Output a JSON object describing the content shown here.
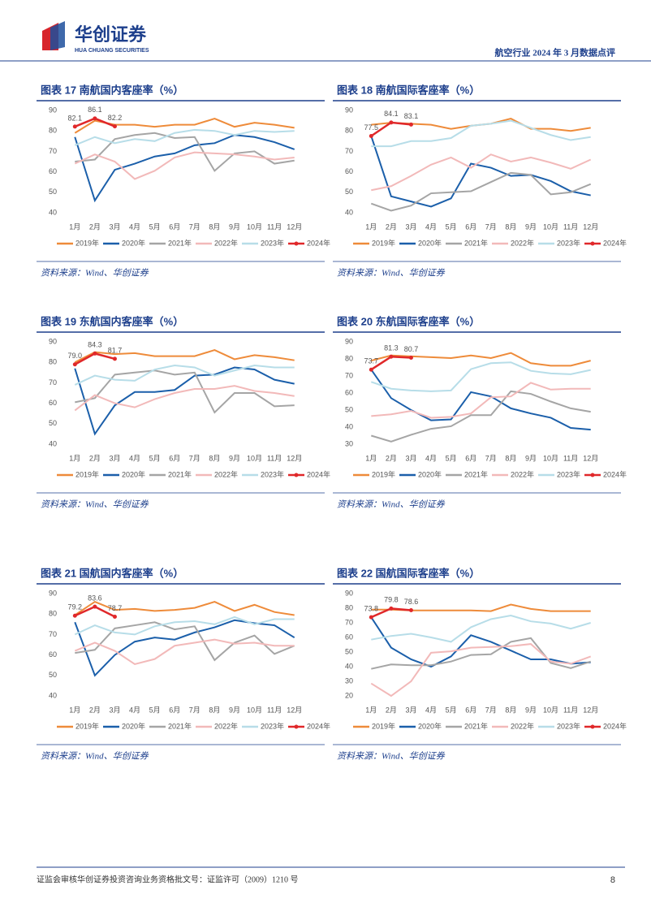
{
  "header": {
    "logo_cn": "华创证券",
    "logo_en": "HUA CHUANG SECURITIES",
    "report": "航空行业 2024 年 3 月数据点评"
  },
  "footer": {
    "license": "证监会审核华创证券投资咨询业务资格批文号：证监许可（2009）1210 号",
    "page": "8"
  },
  "chart_data": [
    {
      "type": "line",
      "title": "图表 17   南航国内客座率（%）",
      "source": "资料来源：Wind、华创证券",
      "ylim": [
        40,
        90
      ],
      "yticks": [
        40,
        50,
        60,
        70,
        80,
        90
      ],
      "categories": [
        "1月",
        "2月",
        "3月",
        "4月",
        "5月",
        "6月",
        "7月",
        "8月",
        "9月",
        "10月",
        "11月",
        "12月"
      ],
      "series": [
        {
          "name": "2019年",
          "color": "#ee8b3a",
          "values": [
            79,
            85,
            83,
            83,
            82,
            83,
            83,
            86,
            82,
            84,
            83,
            81.5
          ]
        },
        {
          "name": "2020年",
          "color": "#1b5faa",
          "values": [
            77,
            46,
            61,
            64,
            67.5,
            69,
            73,
            74,
            78,
            77,
            74.5,
            71
          ]
        },
        {
          "name": "2021年",
          "color": "#a5a5a5",
          "values": [
            65,
            66,
            76,
            78,
            79,
            76.5,
            77,
            60.5,
            69,
            70,
            64,
            65.5
          ]
        },
        {
          "name": "2022年",
          "color": "#f2b9b9",
          "values": [
            64,
            68.5,
            65,
            56.5,
            60.5,
            67,
            69.5,
            69,
            68.5,
            67.5,
            66,
            67
          ]
        },
        {
          "name": "2023年",
          "color": "#b7dde8",
          "values": [
            73,
            77,
            74,
            76,
            75,
            79,
            80.5,
            80,
            78,
            80,
            79.5,
            80
          ]
        },
        {
          "name": "2024年",
          "color": "#e0282a",
          "values": [
            82.1,
            86.1,
            82.2,
            null,
            null,
            null,
            null,
            null,
            null,
            null,
            null,
            null
          ]
        }
      ]
    },
    {
      "type": "line",
      "title": "图表 18   南航国际客座率（%）",
      "source": "资料来源：Wind、华创证券",
      "ylim": [
        40,
        90
      ],
      "yticks": [
        40,
        50,
        60,
        70,
        80,
        90
      ],
      "categories": [
        "1月",
        "2月",
        "3月",
        "4月",
        "5月",
        "6月",
        "7月",
        "8月",
        "9月",
        "10月",
        "11月",
        "12月"
      ],
      "series": [
        {
          "name": "2019年",
          "color": "#ee8b3a",
          "values": [
            83,
            84,
            83.5,
            83,
            81,
            82.5,
            83.5,
            86,
            81,
            81,
            80,
            81.5
          ]
        },
        {
          "name": "2020年",
          "color": "#1b5faa",
          "values": [
            77.5,
            48,
            45.5,
            43,
            47,
            64,
            62,
            58,
            58.5,
            55.5,
            50.5,
            48.5
          ]
        },
        {
          "name": "2021年",
          "color": "#a5a5a5",
          "values": [
            44.5,
            41,
            43.5,
            49.5,
            50,
            50.5,
            55,
            59.5,
            58.5,
            49,
            50,
            54
          ]
        },
        {
          "name": "2022年",
          "color": "#f2b9b9",
          "values": [
            51,
            53,
            58,
            63.5,
            67,
            62,
            68.5,
            65,
            67,
            64.5,
            61.5,
            66
          ]
        },
        {
          "name": "2023年",
          "color": "#b7dde8",
          "values": [
            72.5,
            72.5,
            75,
            75,
            76.5,
            82.5,
            83.5,
            85,
            81.5,
            78,
            75.5,
            77
          ]
        },
        {
          "name": "2024年",
          "color": "#e0282a",
          "values": [
            77.5,
            84.1,
            83.1,
            null,
            null,
            null,
            null,
            null,
            null,
            null,
            null,
            null
          ]
        }
      ]
    },
    {
      "type": "line",
      "title": "图表 19   东航国内客座率（%）",
      "source": "资料来源：Wind、华创证券",
      "ylim": [
        40,
        90
      ],
      "yticks": [
        40,
        50,
        60,
        70,
        80,
        90
      ],
      "categories": [
        "1月",
        "2月",
        "3月",
        "4月",
        "5月",
        "6月",
        "7月",
        "8月",
        "9月",
        "10月",
        "11月",
        "12月"
      ],
      "series": [
        {
          "name": "2019年",
          "color": "#ee8b3a",
          "values": [
            80,
            85,
            84,
            84.5,
            83,
            83,
            83,
            86,
            81.5,
            83.5,
            82.5,
            81
          ]
        },
        {
          "name": "2020年",
          "color": "#1b5faa",
          "values": [
            77,
            45,
            59,
            65.5,
            65.5,
            66.5,
            73.5,
            74,
            77.5,
            76.5,
            71.5,
            69.5
          ]
        },
        {
          "name": "2021年",
          "color": "#a5a5a5",
          "values": [
            60.5,
            62.5,
            74,
            75,
            76,
            74,
            75,
            55.5,
            65,
            65,
            58.5,
            59
          ]
        },
        {
          "name": "2022年",
          "color": "#f2b9b9",
          "values": [
            56.5,
            64,
            60,
            58,
            62,
            65,
            67,
            67,
            68.5,
            66,
            65,
            63.5
          ]
        },
        {
          "name": "2023年",
          "color": "#b7dde8",
          "values": [
            69,
            73.5,
            71.5,
            71,
            76.5,
            78.5,
            77.5,
            73.5,
            76,
            78.5,
            77.5,
            77.5
          ]
        },
        {
          "name": "2024年",
          "color": "#e0282a",
          "values": [
            79.0,
            84.3,
            81.7,
            null,
            null,
            null,
            null,
            null,
            null,
            null,
            null,
            null
          ],
          "value_labels": [
            "79.0",
            "84.3",
            "81.7",
            null,
            null,
            null,
            null,
            null,
            null,
            null,
            null,
            null
          ]
        }
      ]
    },
    {
      "type": "line",
      "title": "图表 20   东航国际客座率（%）",
      "source": "资料来源：Wind、华创证券",
      "ylim": [
        30,
        90
      ],
      "yticks": [
        30,
        40,
        50,
        60,
        70,
        80,
        90
      ],
      "categories": [
        "1月",
        "2月",
        "3月",
        "4月",
        "5月",
        "6月",
        "7月",
        "8月",
        "9月",
        "10月",
        "11月",
        "12月"
      ],
      "series": [
        {
          "name": "2019年",
          "color": "#ee8b3a",
          "values": [
            79,
            82,
            81.5,
            81,
            80.5,
            82,
            80.5,
            83.5,
            77.5,
            76,
            76,
            79
          ]
        },
        {
          "name": "2020年",
          "color": "#1b5faa",
          "values": [
            73.7,
            57,
            50,
            44,
            44.5,
            60.5,
            58,
            51,
            48,
            45.5,
            39.5,
            38.5
          ]
        },
        {
          "name": "2021年",
          "color": "#a5a5a5",
          "values": [
            35,
            31.5,
            35.5,
            39,
            40.5,
            47,
            47,
            61,
            59.5,
            55,
            51,
            49
          ]
        },
        {
          "name": "2022年",
          "color": "#f2b9b9",
          "values": [
            46.5,
            47.5,
            49.5,
            45.5,
            46,
            48,
            57.5,
            58,
            66,
            62,
            62.5,
            62.5
          ]
        },
        {
          "name": "2023年",
          "color": "#b7dde8",
          "values": [
            66.5,
            62.5,
            61.5,
            61,
            61.5,
            74,
            77.5,
            78,
            73,
            71.5,
            71,
            73.5
          ]
        },
        {
          "name": "2024年",
          "color": "#e0282a",
          "values": [
            73.7,
            81.3,
            80.7,
            null,
            null,
            null,
            null,
            null,
            null,
            null,
            null,
            null
          ]
        }
      ]
    },
    {
      "type": "line",
      "title": "图表 21   国航国内客座率（%）",
      "source": "资料来源：Wind、华创证券",
      "ylim": [
        40,
        90
      ],
      "yticks": [
        40,
        50,
        60,
        70,
        80,
        90
      ],
      "categories": [
        "1月",
        "2月",
        "3月",
        "4月",
        "5月",
        "6月",
        "7月",
        "8月",
        "9月",
        "10月",
        "11月",
        "12月"
      ],
      "series": [
        {
          "name": "2019年",
          "color": "#ee8b3a",
          "values": [
            79.5,
            86,
            82,
            82.5,
            81.5,
            82,
            83,
            86,
            81.5,
            84.5,
            81,
            79.5
          ]
        },
        {
          "name": "2020年",
          "color": "#1b5faa",
          "values": [
            76,
            50,
            60,
            66.5,
            68.5,
            67.5,
            71,
            73.5,
            77,
            75.5,
            74.5,
            68.5
          ]
        },
        {
          "name": "2021年",
          "color": "#a5a5a5",
          "values": [
            61,
            62.5,
            73,
            74.5,
            76,
            72.5,
            74,
            57.5,
            66,
            69.5,
            60.5,
            64.5
          ]
        },
        {
          "name": "2022年",
          "color": "#f2b9b9",
          "values": [
            62,
            66,
            62,
            55.5,
            58,
            64.5,
            66,
            67.5,
            65.5,
            66,
            64.5,
            64.5
          ]
        },
        {
          "name": "2023年",
          "color": "#b7dde8",
          "values": [
            70,
            74.5,
            71,
            70,
            74,
            76,
            76.5,
            75,
            78.5,
            75,
            77.5,
            77.5
          ]
        },
        {
          "name": "2024年",
          "color": "#e0282a",
          "values": [
            79.2,
            83.6,
            78.7,
            null,
            null,
            null,
            null,
            null,
            null,
            null,
            null,
            null
          ]
        }
      ]
    },
    {
      "type": "line",
      "title": "图表 22   国航国际客座率（%）",
      "source": "资料来源：Wind、华创证券",
      "ylim": [
        20,
        90
      ],
      "yticks": [
        20,
        30,
        40,
        50,
        60,
        70,
        80,
        90
      ],
      "categories": [
        "1月",
        "2月",
        "3月",
        "4月",
        "5月",
        "6月",
        "7月",
        "8月",
        "9月",
        "10月",
        "11月",
        "12月"
      ],
      "series": [
        {
          "name": "2019年",
          "color": "#ee8b3a",
          "values": [
            79,
            79,
            78.5,
            78.5,
            78.5,
            78.5,
            78,
            82.5,
            79.5,
            78,
            78,
            78
          ]
        },
        {
          "name": "2020年",
          "color": "#1b5faa",
          "values": [
            73.8,
            53,
            45,
            40,
            47,
            61.5,
            57,
            51,
            45,
            45,
            42,
            43
          ]
        },
        {
          "name": "2021年",
          "color": "#a5a5a5",
          "values": [
            38.5,
            41.5,
            41,
            41,
            43.5,
            48,
            48.5,
            57,
            59.5,
            42.5,
            39,
            43.5
          ]
        },
        {
          "name": "2022年",
          "color": "#f2b9b9",
          "values": [
            28.5,
            20,
            30,
            49.5,
            50.5,
            53,
            53.5,
            54,
            55.5,
            43.5,
            42,
            47
          ]
        },
        {
          "name": "2023年",
          "color": "#b7dde8",
          "values": [
            58.5,
            61,
            62.5,
            60,
            57,
            67,
            72.5,
            75,
            71,
            69.5,
            66,
            70
          ]
        },
        {
          "name": "2024年",
          "color": "#e0282a",
          "values": [
            73.8,
            79.8,
            78.6,
            null,
            null,
            null,
            null,
            null,
            null,
            null,
            null,
            null
          ]
        }
      ]
    }
  ]
}
